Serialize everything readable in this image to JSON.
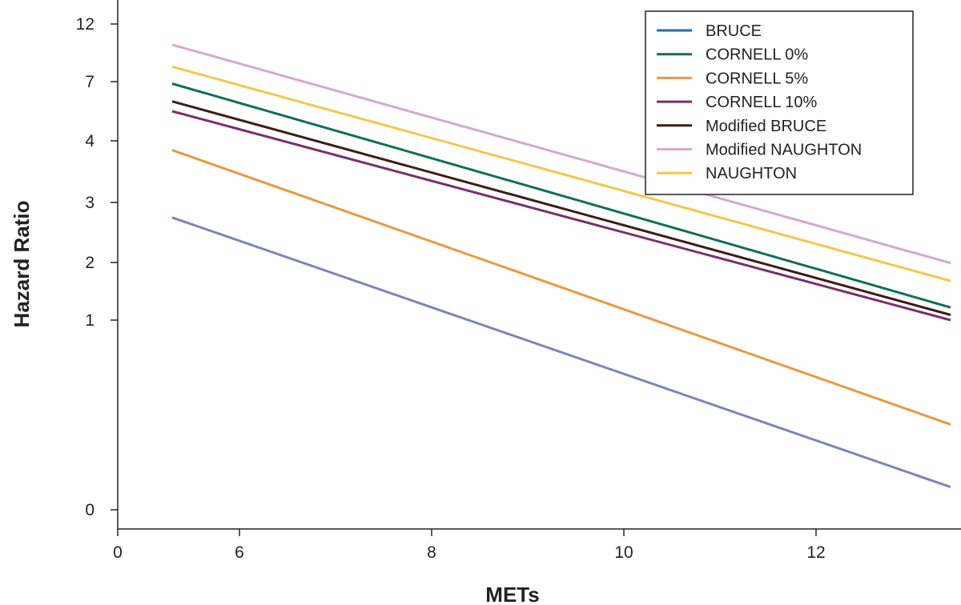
{
  "chart_data": {
    "type": "line",
    "title": "",
    "xlabel": "METs",
    "ylabel": "Hazard Ratio",
    "y_scale": "categorical-ticks",
    "x_ticks": [
      {
        "value": 0,
        "label": "0"
      },
      {
        "value": 6,
        "label": "6"
      },
      {
        "value": 8,
        "label": "8"
      },
      {
        "value": 10,
        "label": "10"
      },
      {
        "value": 12,
        "label": "12"
      }
    ],
    "y_ticks": [
      {
        "value": 0,
        "label": "0"
      },
      {
        "value": 1,
        "label": "1"
      },
      {
        "value": 2,
        "label": "2"
      },
      {
        "value": 3,
        "label": "3"
      },
      {
        "value": 4,
        "label": "4"
      },
      {
        "value": 7,
        "label": "7"
      },
      {
        "value": 12,
        "label": "12"
      }
    ],
    "legend_position": "top-right",
    "series": [
      {
        "name": "BRUCE",
        "color": "#7b86b5",
        "x": [
          5.3,
          13.4
        ],
        "y": [
          2.75,
          0.12
        ]
      },
      {
        "name": "CORNELL 0%",
        "color": "#0f6f5c",
        "x": [
          5.3,
          13.4
        ],
        "y": [
          6.9,
          1.22
        ]
      },
      {
        "name": "CORNELL 5%",
        "color": "#e89a3f",
        "x": [
          5.3,
          13.4
        ],
        "y": [
          3.85,
          0.45
        ]
      },
      {
        "name": "CORNELL 10%",
        "color": "#7b2f6e",
        "x": [
          5.3,
          13.4
        ],
        "y": [
          5.5,
          1.0
        ]
      },
      {
        "name": "Modified BRUCE",
        "color": "#3b1e15",
        "x": [
          5.3,
          13.4
        ],
        "y": [
          6.0,
          1.09
        ]
      },
      {
        "name": "Modified NAUGHTON",
        "color": "#d6a8d3",
        "x": [
          5.3,
          13.4
        ],
        "y": [
          10.2,
          1.99
        ]
      },
      {
        "name": "NAUGHTON",
        "color": "#f2c84b",
        "x": [
          5.3,
          13.4
        ],
        "y": [
          8.3,
          1.68
        ]
      }
    ],
    "legend": [
      {
        "label": "BRUCE",
        "color": "#1f6fa8"
      },
      {
        "label": "CORNELL 0%",
        "color": "#0f6f5c"
      },
      {
        "label": "CORNELL 5%",
        "color": "#e89a3f"
      },
      {
        "label": "CORNELL 10%",
        "color": "#7b2f6e"
      },
      {
        "label": "Modified BRUCE",
        "color": "#3b1e15"
      },
      {
        "label": "Modified NAUGHTON",
        "color": "#d6a8d3"
      },
      {
        "label": "NAUGHTON",
        "color": "#f2c84b"
      }
    ]
  }
}
